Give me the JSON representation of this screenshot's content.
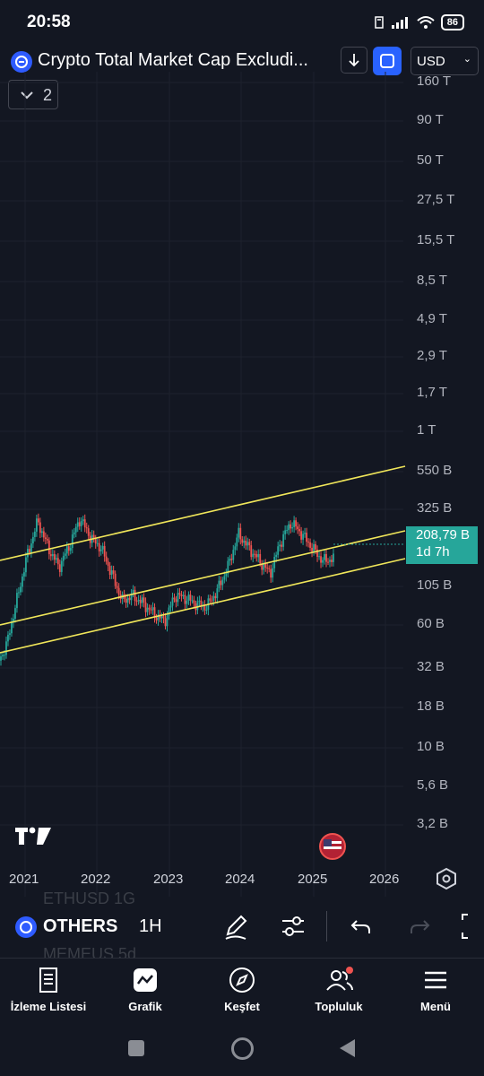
{
  "status_bar": {
    "time": "20:58",
    "battery": "86"
  },
  "header": {
    "title": "Crypto Total Market Cap Excludi...",
    "currency": "USD",
    "indicator_count": "2"
  },
  "price_axis": {
    "labels": [
      "160 T",
      "90 T",
      "50 T",
      "27,5 T",
      "15,5 T",
      "8,5 T",
      "4,9 T",
      "2,9 T",
      "1,7 T",
      "1 T",
      "550 B",
      "325 B",
      "105 B",
      "60 B",
      "32 B",
      "18 B",
      "10 B",
      "5,6 B",
      "3,2 B"
    ],
    "last_price": "208,79 B",
    "countdown": "1d 7h"
  },
  "time_axis": {
    "labels": [
      "2021",
      "2022",
      "2023",
      "2024",
      "2025",
      "2026"
    ]
  },
  "colors": {
    "background": "#131722",
    "up": "#26a69a",
    "down": "#ef5350",
    "channel": "#f0e65a",
    "accent": "#2962ff"
  },
  "chart_data": {
    "type": "candlestick",
    "scale": "log",
    "x": [
      "2020-09",
      "2020-11",
      "2021-01",
      "2021-02",
      "2021-04",
      "2021-05",
      "2021-07",
      "2021-09",
      "2021-11",
      "2021-12",
      "2022-01",
      "2022-03",
      "2022-05",
      "2022-07",
      "2022-09",
      "2022-11",
      "2023-01",
      "2023-03",
      "2023-05",
      "2023-07",
      "2023-09",
      "2023-11",
      "2024-01",
      "2024-03",
      "2024-05",
      "2024-07",
      "2024-09",
      "2024-11",
      "2024-12",
      "2025-01",
      "2025-02",
      "2025-03",
      "2025-04"
    ],
    "y": [
      32,
      45,
      100,
      220,
      400,
      250,
      180,
      260,
      420,
      300,
      250,
      160,
      100,
      110,
      95,
      80,
      70,
      110,
      105,
      95,
      90,
      120,
      180,
      320,
      250,
      200,
      160,
      280,
      390,
      320,
      250,
      200,
      208.79
    ],
    "y_unit": "B USD",
    "channel_lines": "three parallel yellow lines (ascending channel)",
    "grid": true
  },
  "toolbar": {
    "symbol": "OTHERS",
    "interval": "1H",
    "ghost_above": "ETHUSD   1G",
    "ghost_below": "MEMEUS   5d"
  },
  "tabs": [
    {
      "label": "İzleme Listesi",
      "icon": "watchlist-icon"
    },
    {
      "label": "Grafik",
      "icon": "chart-icon"
    },
    {
      "label": "Keşfet",
      "icon": "compass-icon"
    },
    {
      "label": "Topluluk",
      "icon": "community-icon"
    },
    {
      "label": "Menü",
      "icon": "menu-icon"
    }
  ]
}
